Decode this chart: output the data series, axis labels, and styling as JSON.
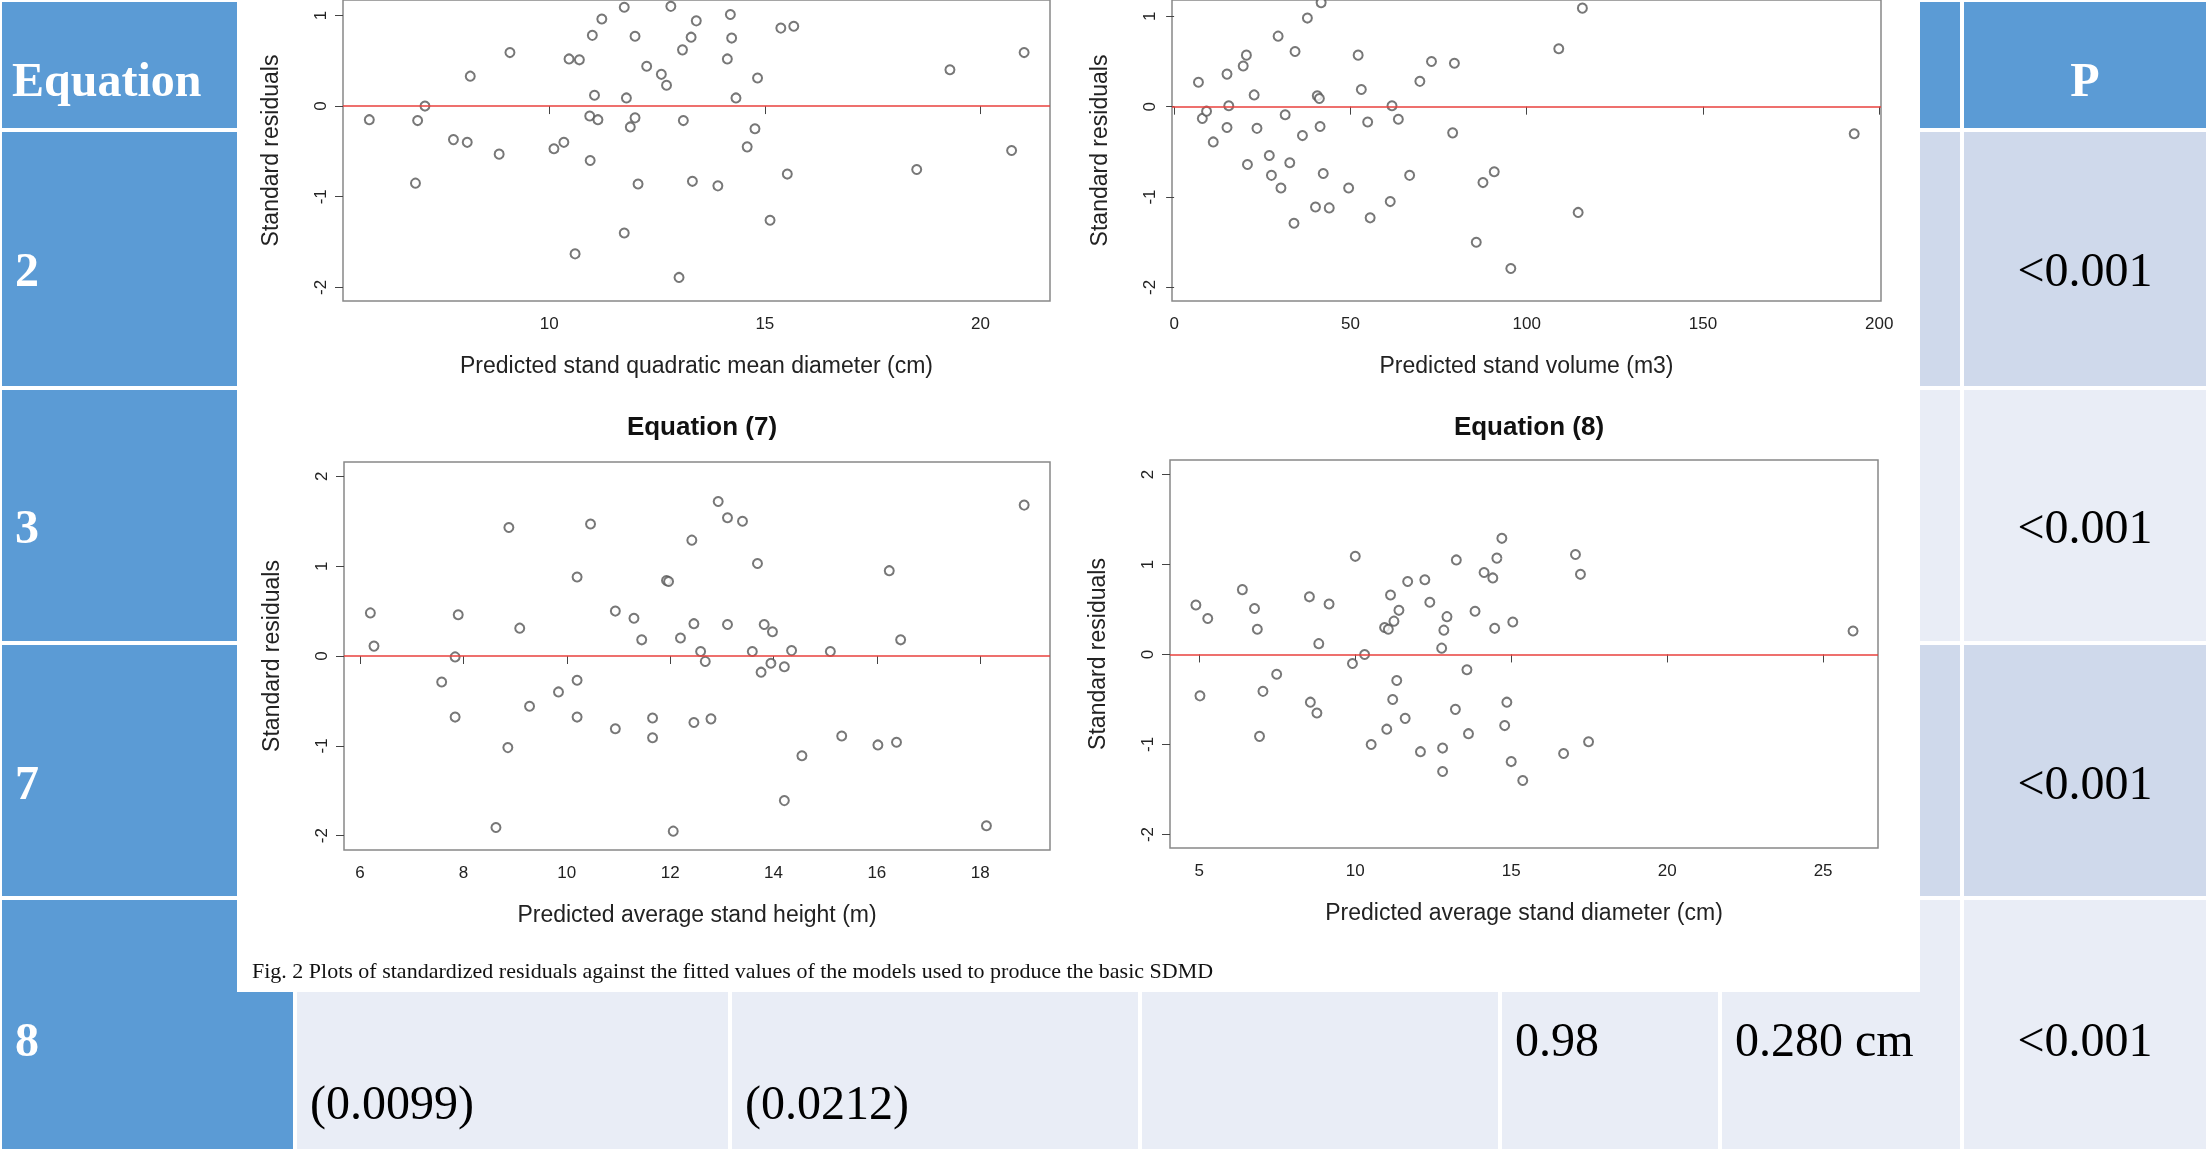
{
  "chart_data": [
    {
      "type": "scatter",
      "xlabel": "Predicted stand quadratic mean diameter (cm)",
      "ylabel": "Standard residuals",
      "xlim": [
        5.22,
        21.61
      ],
      "ylim": [
        -2.15,
        1.17
      ],
      "xticks": [
        10,
        15,
        20
      ],
      "yticks": [
        -2,
        -1,
        0,
        1
      ],
      "marker": "circle",
      "ref_lines": [
        {
          "axis": "y",
          "value": 0,
          "color": "#e8413c"
        }
      ],
      "annotations": [
        "Fig. 2  Plots of standardized residuals against the fitted values of the models used to produce the basic SDMD"
      ],
      "series": [
        {
          "color": "#555555",
          "x": [
            5.83,
            6.95,
            7.12,
            6.9,
            7.78,
            8.1,
            8.17,
            8.84,
            9.09,
            10.11,
            10.34,
            10.46,
            10.7,
            10.6,
            10.94,
            10.95,
            11.0,
            11.05,
            11.13,
            11.22,
            11.74,
            11.79,
            11.88,
            11.99,
            11.99,
            12.06,
            11.74,
            12.26,
            12.6,
            12.72,
            12.82,
            13.01,
            13.09,
            13.11,
            13.29,
            13.32,
            13.41,
            13.91,
            14.13,
            14.2,
            14.23,
            14.33,
            14.59,
            14.77,
            14.83,
            15.12,
            15.37,
            15.52,
            15.67,
            18.52,
            19.29,
            20.72,
            21.01
          ],
          "values": [
            -0.15,
            -0.16,
            0.0,
            -0.85,
            -0.37,
            -0.4,
            0.33,
            -0.53,
            0.59,
            -0.47,
            -0.4,
            0.52,
            0.51,
            -1.63,
            -0.11,
            -0.6,
            0.78,
            0.12,
            -0.15,
            0.96,
            1.09,
            0.09,
            -0.23,
            -0.13,
            0.77,
            -0.86,
            -1.4,
            0.44,
            0.35,
            0.23,
            1.1,
            -1.89,
            0.62,
            -0.16,
            0.76,
            -0.83,
            0.94,
            -0.88,
            0.52,
            1.01,
            0.75,
            0.09,
            -0.45,
            -0.25,
            0.31,
            -1.26,
            0.86,
            -0.75,
            0.88,
            -0.7,
            0.4,
            -0.49,
            0.59
          ]
        }
      ]
    },
    {
      "type": "scatter",
      "xlabel": "Predicted stand volume (m3)",
      "ylabel": "Standard residuals",
      "xlim": [
        -0.6,
        200.5
      ],
      "ylim": [
        -2.15,
        1.18
      ],
      "xticks": [
        0,
        50,
        100,
        150,
        200
      ],
      "yticks": [
        -2,
        -1,
        0,
        1
      ],
      "marker": "circle",
      "ref_lines": [
        {
          "axis": "y",
          "value": 0,
          "color": "#e8413c"
        }
      ],
      "series": [
        {
          "color": "#555555",
          "x": [
            6.9,
            8.0,
            9.2,
            11.1,
            15.0,
            15.0,
            15.5,
            19.6,
            20.5,
            20.8,
            22.7,
            23.5,
            27.0,
            27.6,
            29.5,
            30.3,
            31.5,
            32.8,
            34.0,
            34.3,
            36.4,
            37.8,
            40.1,
            40.6,
            41.2,
            41.4,
            41.7,
            42.3,
            44.0,
            49.5,
            52.2,
            53.1,
            54.9,
            55.6,
            61.3,
            61.8,
            63.6,
            66.8,
            69.7,
            73.0,
            79.0,
            79.5,
            85.7,
            87.6,
            90.8,
            95.5,
            109.1,
            114.6,
            115.8,
            192.9
          ],
          "values": [
            0.27,
            -0.13,
            -0.05,
            -0.39,
            0.36,
            -0.23,
            0.01,
            0.45,
            0.57,
            -0.64,
            0.13,
            -0.24,
            -0.54,
            -0.76,
            0.78,
            -0.9,
            -0.09,
            -0.62,
            -1.29,
            0.61,
            -0.32,
            0.98,
            -1.11,
            0.12,
            0.09,
            -0.22,
            1.15,
            -0.74,
            -1.12,
            -0.9,
            0.57,
            0.19,
            -0.17,
            -1.23,
            -1.05,
            0.01,
            -0.14,
            -0.76,
            0.28,
            0.5,
            -0.29,
            0.48,
            -1.5,
            -0.84,
            -0.72,
            -1.79,
            0.64,
            -1.17,
            1.09,
            -0.3
          ]
        }
      ]
    },
    {
      "type": "scatter",
      "title": "Equation (7)",
      "xlabel": "Predicted average stand height (m)",
      "ylabel": "Standard residuals",
      "xlim": [
        5.69,
        19.35
      ],
      "ylim": [
        -2.16,
        2.16
      ],
      "xticks": [
        6,
        8,
        10,
        12,
        14,
        16,
        18
      ],
      "yticks": [
        -2,
        -1,
        0,
        1,
        2
      ],
      "marker": "circle",
      "ref_lines": [
        {
          "axis": "y",
          "value": 0,
          "color": "#e8413c"
        }
      ],
      "series": [
        {
          "color": "#555555",
          "x": [
            6.2,
            6.27,
            7.58,
            7.84,
            7.84,
            7.9,
            8.63,
            8.86,
            8.88,
            9.09,
            9.28,
            9.84,
            10.2,
            10.2,
            10.2,
            10.46,
            10.94,
            10.94,
            11.3,
            11.45,
            11.66,
            11.66,
            11.93,
            11.97,
            12.06,
            12.2,
            12.42,
            12.46,
            12.46,
            12.59,
            12.68,
            12.79,
            12.93,
            13.11,
            13.11,
            13.4,
            13.59,
            13.69,
            13.76,
            13.82,
            13.95,
            13.98,
            14.21,
            14.21,
            14.35,
            14.55,
            15.1,
            15.32,
            16.02,
            16.24,
            16.38,
            16.46,
            18.12,
            18.85
          ],
          "values": [
            0.48,
            0.11,
            -0.29,
            -0.01,
            -0.68,
            0.46,
            -1.91,
            -1.02,
            1.43,
            0.31,
            -0.56,
            -0.4,
            0.88,
            -0.27,
            -0.68,
            1.47,
            0.5,
            -0.81,
            0.42,
            0.18,
            -0.69,
            -0.91,
            0.84,
            0.83,
            -1.95,
            0.2,
            1.29,
            0.36,
            -0.74,
            0.05,
            -0.06,
            -0.7,
            1.72,
            1.54,
            0.35,
            1.5,
            0.05,
            1.03,
            -0.18,
            0.35,
            -0.08,
            0.27,
            -0.12,
            -1.61,
            0.06,
            -1.11,
            0.05,
            -0.89,
            -0.99,
            0.95,
            -0.96,
            0.18,
            -1.89,
            1.68
          ]
        }
      ]
    },
    {
      "type": "scatter",
      "title": "Equation (8)",
      "xlabel": "Predicted average stand diameter (cm)",
      "ylabel": "Standard residuals",
      "xlim": [
        4.06,
        26.76
      ],
      "ylim": [
        -2.15,
        2.16
      ],
      "xticks": [
        5,
        10,
        15,
        20,
        25
      ],
      "yticks": [
        -2,
        -1,
        0,
        1,
        2
      ],
      "marker": "circle",
      "ref_lines": [
        {
          "axis": "y",
          "value": 0,
          "color": "#e8413c"
        }
      ],
      "series": [
        {
          "color": "#555555",
          "x": [
            4.89,
            5.02,
            5.27,
            6.38,
            6.77,
            6.86,
            6.93,
            7.04,
            7.48,
            8.53,
            8.56,
            8.77,
            8.83,
            9.16,
            9.91,
            10.0,
            10.3,
            10.51,
            10.94,
            11.01,
            11.06,
            11.13,
            11.2,
            11.24,
            11.33,
            11.4,
            11.6,
            11.68,
            12.09,
            12.23,
            12.39,
            12.77,
            12.8,
            12.8,
            12.84,
            12.94,
            13.21,
            13.24,
            13.58,
            13.63,
            13.84,
            14.13,
            14.41,
            14.47,
            14.54,
            14.7,
            14.79,
            14.86,
            15.0,
            15.05,
            15.37,
            16.68,
            17.06,
            17.22,
            17.48,
            25.96
          ],
          "values": [
            0.55,
            -0.46,
            0.4,
            0.72,
            0.51,
            0.28,
            -0.91,
            -0.41,
            -0.22,
            0.64,
            -0.53,
            -0.65,
            0.12,
            0.56,
            -0.1,
            1.09,
            0.0,
            -1.0,
            0.3,
            -0.83,
            0.28,
            0.66,
            -0.5,
            0.37,
            -0.29,
            0.49,
            -0.71,
            0.81,
            -1.08,
            0.83,
            0.58,
            0.07,
            -1.04,
            -1.3,
            0.27,
            0.42,
            -0.61,
            1.05,
            -0.17,
            -0.88,
            0.48,
            0.91,
            0.85,
            0.29,
            1.07,
            1.29,
            -0.79,
            -0.53,
            -1.19,
            0.36,
            -1.4,
            -1.1,
            1.11,
            0.89,
            -0.97,
            0.26
          ]
        }
      ]
    },
    {
      "type": "other",
      "annotations": [
        "Equation",
        "P",
        "2",
        "3",
        "7",
        "8",
        "<0.001",
        "<0.001",
        "<0.001",
        "<0.001",
        "0.98",
        "0.280 cm",
        "(0.0099)",
        "(0.0212)"
      ]
    }
  ]
}
